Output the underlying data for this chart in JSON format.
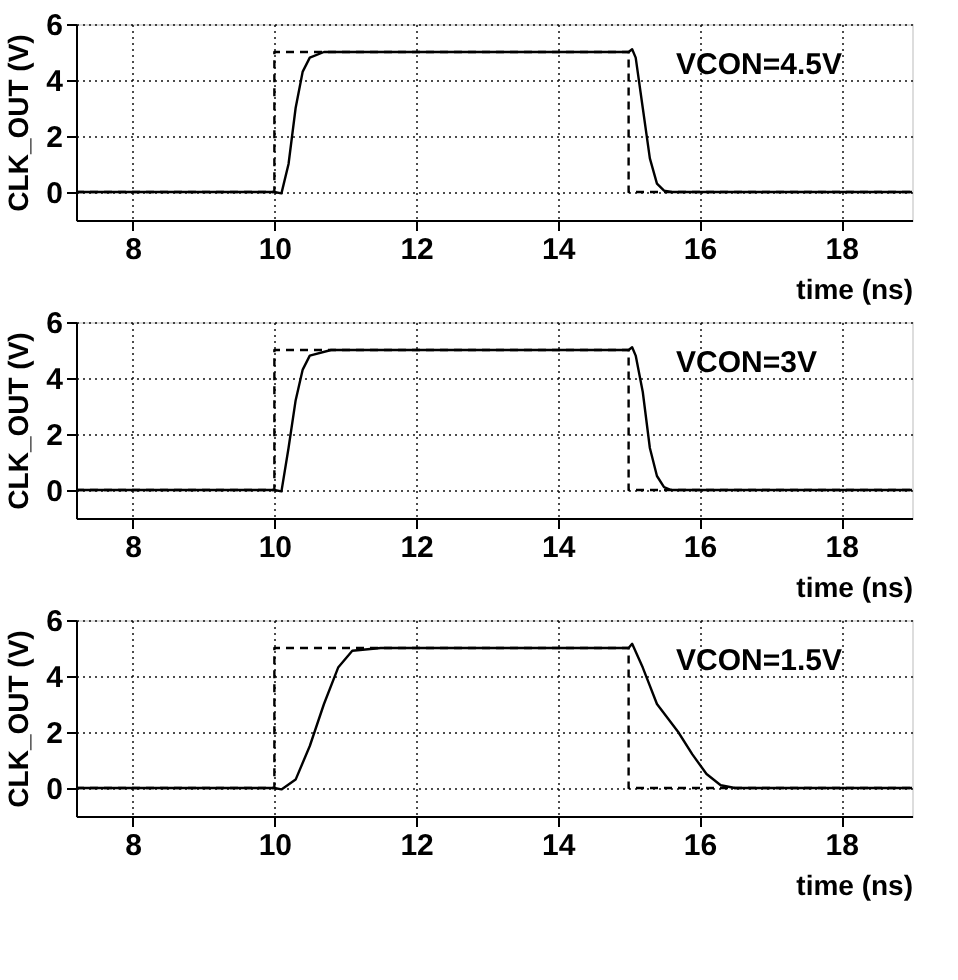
{
  "chart_data": [
    {
      "type": "line",
      "xlabel": "time (ns)",
      "ylabel": "CLK_OUT (V)",
      "annotations": [
        "VCON=4.5V"
      ],
      "xlim": [
        7.2,
        19
      ],
      "ylim": [
        -1,
        6
      ],
      "xticks": [
        8,
        10,
        12,
        14,
        16,
        18
      ],
      "yticks": [
        0,
        2,
        4,
        6
      ],
      "grid": true,
      "series": [
        {
          "color": "#000000",
          "line_style": "dashed",
          "x": [
            7.2,
            10,
            10,
            15,
            15,
            19
          ],
          "values": [
            0,
            0,
            5,
            5,
            0,
            0
          ]
        },
        {
          "color": "#000000",
          "line_style": "solid",
          "x": [
            7.2,
            10,
            10.1,
            10.2,
            10.3,
            10.4,
            10.5,
            10.7,
            15,
            15.05,
            15.1,
            15.2,
            15.3,
            15.4,
            15.5,
            15.6,
            19
          ],
          "values": [
            0,
            0,
            -0.05,
            1,
            3,
            4.3,
            4.8,
            5,
            5,
            5.1,
            4.8,
            3,
            1.2,
            0.3,
            0.05,
            0,
            0
          ]
        }
      ]
    },
    {
      "type": "line",
      "xlabel": "time (ns)",
      "ylabel": "CLK_OUT (V)",
      "annotations": [
        "VCON=3V"
      ],
      "xlim": [
        7.2,
        19
      ],
      "ylim": [
        -1,
        6
      ],
      "xticks": [
        8,
        10,
        12,
        14,
        16,
        18
      ],
      "yticks": [
        0,
        2,
        4,
        6
      ],
      "grid": true,
      "series": [
        {
          "color": "#000000",
          "line_style": "dashed",
          "x": [
            7.2,
            10,
            10,
            15,
            15,
            19
          ],
          "values": [
            0,
            0,
            5,
            5,
            0,
            0
          ]
        },
        {
          "color": "#000000",
          "line_style": "solid",
          "x": [
            7.2,
            10,
            10.1,
            10.2,
            10.3,
            10.4,
            10.5,
            10.8,
            15,
            15.05,
            15.1,
            15.2,
            15.3,
            15.4,
            15.5,
            15.6,
            19
          ],
          "values": [
            0,
            0,
            -0.05,
            1.5,
            3.2,
            4.3,
            4.8,
            5,
            5,
            5.1,
            4.8,
            3.5,
            1.5,
            0.5,
            0.1,
            0,
            0
          ]
        }
      ]
    },
    {
      "type": "line",
      "xlabel": "time (ns)",
      "ylabel": "CLK_OUT (V)",
      "annotations": [
        "VCON=1.5V"
      ],
      "xlim": [
        7.2,
        19
      ],
      "ylim": [
        -1,
        6
      ],
      "xticks": [
        8,
        10,
        12,
        14,
        16,
        18
      ],
      "yticks": [
        0,
        2,
        4,
        6
      ],
      "grid": true,
      "series": [
        {
          "color": "#000000",
          "line_style": "dashed",
          "x": [
            7.2,
            10,
            10,
            15,
            15,
            19
          ],
          "values": [
            0,
            0,
            5,
            5,
            0,
            0
          ]
        },
        {
          "color": "#000000",
          "line_style": "solid",
          "x": [
            7.2,
            10,
            10.1,
            10.3,
            10.5,
            10.7,
            10.9,
            11.1,
            11.5,
            15,
            15.05,
            15.2,
            15.4,
            15.7,
            15.9,
            16.1,
            16.3,
            16.5,
            19
          ],
          "values": [
            0,
            0,
            -0.05,
            0.3,
            1.5,
            3,
            4.3,
            4.9,
            5,
            5,
            5.15,
            4.3,
            3,
            2,
            1.2,
            0.5,
            0.1,
            0,
            0
          ]
        }
      ]
    }
  ]
}
